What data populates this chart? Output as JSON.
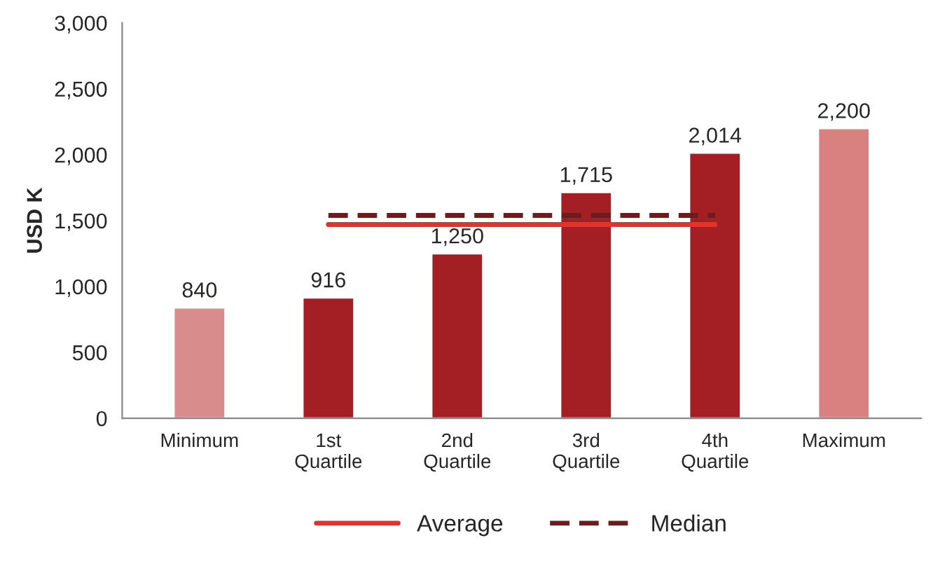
{
  "chart_data": {
    "type": "bar",
    "ylabel": "USD K",
    "categories": [
      "Minimum",
      "1st\nQuartile",
      "2nd\nQuartile",
      "3rd\nQuartile",
      "4th\nQuartile",
      "Maximum"
    ],
    "series": [
      {
        "colors": [
          "#d98c8c",
          "#a31f24",
          "#a31f24",
          "#a31f24",
          "#a31f24",
          "#d98080"
        ],
        "values": [
          840,
          916,
          1250,
          1715,
          2014,
          2200
        ],
        "value_labels": [
          "840",
          "916",
          "1,250",
          "1,715",
          "2,014",
          "2,200"
        ]
      },
      {
        "type": "line",
        "name": "Average",
        "color": "#e53228",
        "line_style": "solid",
        "values": [
          null,
          1470,
          1470,
          1470,
          1470,
          null
        ]
      },
      {
        "type": "line",
        "name": "Median",
        "color": "#6b1c1c",
        "line_style": "dashed",
        "values": [
          null,
          1540,
          1540,
          1540,
          1540,
          null
        ]
      }
    ],
    "ylim": [
      0,
      3000
    ],
    "yticks": [
      0,
      {
        "value": 500,
        "label": "500"
      },
      {
        "value": 1000,
        "label": "1,000"
      },
      {
        "value": 1500,
        "label": "1,500"
      },
      {
        "value": 2000,
        "label": "2,000"
      },
      {
        "value": 2500,
        "label": "2,500"
      },
      {
        "value": 3000,
        "label": "3,000"
      }
    ],
    "grid": false,
    "legend": "bottom"
  }
}
